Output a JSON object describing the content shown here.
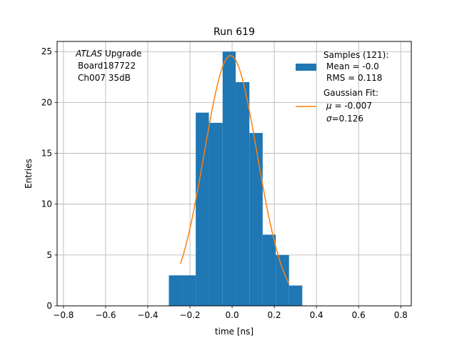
{
  "chart_data": {
    "type": "bar",
    "title": "Run 619",
    "xlabel": "time [ns]",
    "ylabel": "Entries",
    "xlim": [
      -0.83,
      0.85
    ],
    "ylim": [
      0,
      26
    ],
    "grid": true,
    "x_ticks": [
      -0.8,
      -0.6,
      -0.4,
      -0.2,
      0.0,
      0.2,
      0.4,
      0.6,
      0.8
    ],
    "x_tick_labels": [
      "−0.8",
      "−0.6",
      "−0.4",
      "−0.2",
      "0.0",
      "0.2",
      "0.4",
      "0.6",
      "0.8"
    ],
    "y_ticks": [
      0,
      5,
      10,
      15,
      20,
      25
    ],
    "y_tick_labels": [
      "0",
      "5",
      "10",
      "15",
      "20",
      "25"
    ],
    "annotation": {
      "line1_italic": "ATLAS",
      "line1_rest": " Upgrade",
      "line2": "Board187722",
      "line3": "Ch007 35dB"
    },
    "histogram": {
      "name": "Samples (121):",
      "color": "#1f77b4",
      "bin_edges": [
        -0.3,
        -0.2375,
        -0.1725,
        -0.11,
        -0.045,
        0.017,
        0.082,
        0.145,
        0.207,
        0.27,
        0.333
      ],
      "counts": [
        3,
        3,
        19,
        18,
        25,
        22,
        17,
        7,
        5,
        2
      ]
    },
    "fit": {
      "name": "Gaussian Fit:",
      "color": "#ff7f0e",
      "mu": -0.007,
      "sigma": 0.126,
      "amplitude": 24.6,
      "x_range": [
        -0.245,
        0.27
      ]
    },
    "legend": {
      "placement": "top-right",
      "samples_title": "Samples (121):",
      "samples_mean": "Mean = -0.0",
      "samples_rms": "RMS = 0.118",
      "fit_title": "Gaussian Fit:",
      "fit_mu_symbol": "μ",
      "fit_mu_value": " = -0.007",
      "fit_sigma_symbol": "σ",
      "fit_sigma_value": "=0.126"
    }
  }
}
